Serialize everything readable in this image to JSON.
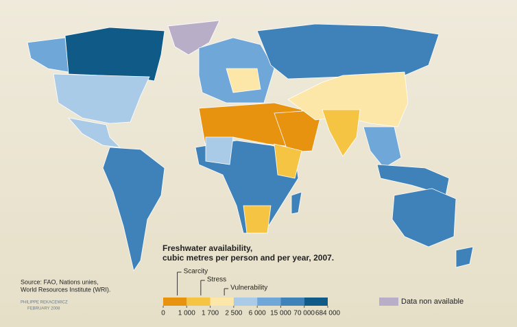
{
  "title_lines": [
    "Freshwater availability,",
    "cubic metres per person and per year, 2007."
  ],
  "legend": {
    "colors": [
      "#e8930f",
      "#f6c443",
      "#fce7a8",
      "#a9cbe8",
      "#6fa7d8",
      "#3f82b9",
      "#0f5a86"
    ],
    "breaks": [
      0,
      {
        "value": 1000,
        "label": "1 000"
      },
      {
        "value": 1700,
        "label": "1 700"
      },
      {
        "value": 2500,
        "label": "2 500"
      },
      {
        "value": 6000,
        "label": "6 000"
      },
      {
        "value": 15000,
        "label": "15 000"
      },
      {
        "value": 70000,
        "label": "70 000"
      },
      {
        "value": 684000,
        "label": "684 000"
      }
    ],
    "thresholds": [
      "Scarcity",
      "Stress",
      "Vulnerability"
    ],
    "no_data_color": "#b9aec8",
    "no_data": "Data non available"
  },
  "source_lines": [
    "Source: FAO, Nations unies,",
    "World Resources Institute (WRI)."
  ],
  "credit_lines": [
    "PHILIPPE REKACEWICZ",
    "FEBRUARY 2008"
  ]
}
